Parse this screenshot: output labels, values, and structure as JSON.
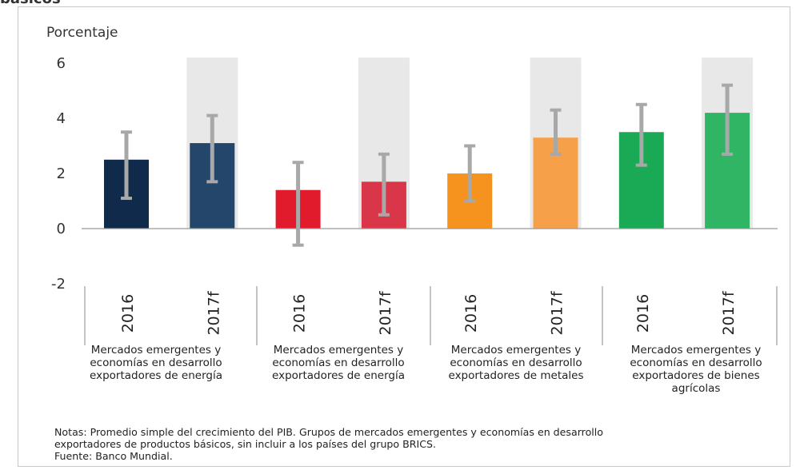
{
  "header_fragment": "básicos",
  "chart_data": {
    "type": "bar",
    "ylabel": "Porcentaje",
    "ylim": [
      -2,
      6.3
    ],
    "yticks": [
      -2,
      0,
      2,
      4,
      6
    ],
    "categories": [
      "2016",
      "2017f",
      "2016",
      "2017f",
      "2016",
      "2017f",
      "2016",
      "2017f"
    ],
    "values": [
      2.5,
      3.1,
      1.4,
      1.7,
      2.0,
      3.3,
      3.5,
      4.2
    ],
    "error_low": [
      1.1,
      1.7,
      -0.6,
      0.5,
      1.0,
      2.7,
      2.3,
      2.7
    ],
    "error_high": [
      3.5,
      4.1,
      2.4,
      2.7,
      3.0,
      4.3,
      4.5,
      5.2
    ],
    "forecast_band_top": 6.2,
    "colors": [
      "#0f2a4a",
      "#24466a",
      "#e21b2c",
      "#d9364a",
      "#f6921e",
      "#f6a04a",
      "#1aaa55",
      "#2fb564"
    ],
    "error_color": "#a8a8a8",
    "band_color": "#e8e8e8",
    "groups": [
      {
        "label": "Mercados emergentes y economías en desarrollo exportadores de energía"
      },
      {
        "label": "Mercados emergentes y economías en desarrollo exportadores de energía"
      },
      {
        "label": "Mercados emergentes y economías en desarrollo exportadores de metales"
      },
      {
        "label": "Mercados emergentes y economías en desarrollo exportadores de bienes agrícolas"
      }
    ]
  },
  "notes": {
    "line1": "Notas: Promedio simple del crecimiento del PIB. Grupos de mercados emergentes y economías en desarrollo",
    "line2": "exportadores de productos básicos, sin incluir a los países del grupo BRICS.",
    "source": "Fuente: Banco Mundial."
  }
}
